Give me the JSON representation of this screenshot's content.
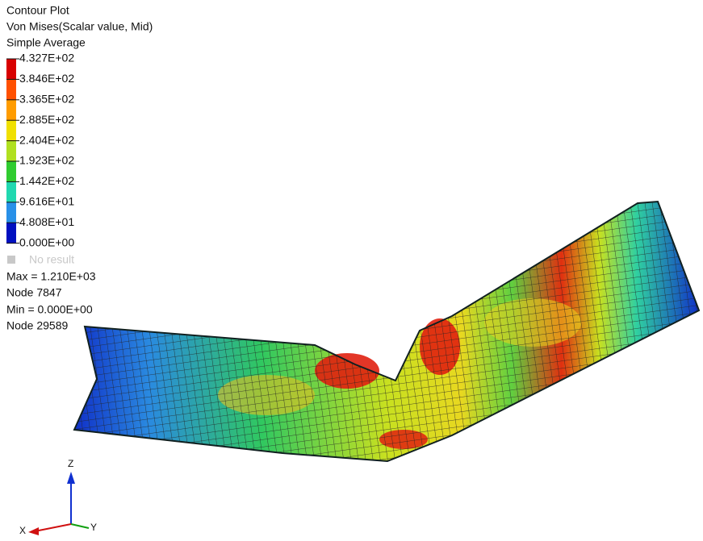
{
  "legend": {
    "title": "Contour Plot",
    "subtitle": "Von Mises(Scalar value, Mid)",
    "averaging": "Simple Average",
    "levels": [
      "4.327E+02",
      "3.846E+02",
      "3.365E+02",
      "2.885E+02",
      "2.404E+02",
      "1.923E+02",
      "1.442E+02",
      "9.616E+01",
      "4.808E+01",
      "0.000E+00"
    ],
    "colors": [
      "#d80000",
      "#ff5000",
      "#ff9c00",
      "#f0e000",
      "#b0e020",
      "#30cc30",
      "#20d8b0",
      "#2890e8",
      "#0010c0"
    ],
    "no_result": "No result"
  },
  "info": {
    "max": "Max = 1.210E+03",
    "max_node": "Node 7847",
    "min": "Min = 0.000E+00",
    "min_node": "Node 29589"
  },
  "triad": {
    "z": "Z",
    "y": "Y",
    "x": "X"
  }
}
